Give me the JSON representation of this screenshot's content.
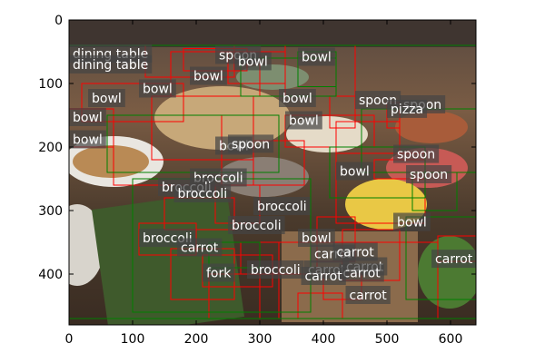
{
  "colors": {
    "predicted_box": "#ff0000",
    "ground_truth_box": "#008000",
    "label_background": "#444444",
    "label_text": "#ffffff"
  },
  "photo": {
    "subject": "buffet table with food trays and bowls",
    "width_units": 640,
    "height_units": 480
  },
  "chart_data": {
    "type": "image",
    "xlim": [
      0,
      640
    ],
    "ylim": [
      480,
      0
    ],
    "x_ticks": [
      0,
      100,
      200,
      300,
      400,
      500,
      600
    ],
    "y_ticks": [
      0,
      100,
      200,
      300,
      400
    ],
    "grid": false,
    "label_rows": [
      [
        "dining table",
        0,
        60
      ],
      [
        "dining table",
        0,
        77
      ],
      [
        "spoon",
        230,
        62
      ],
      [
        "bowl",
        260,
        72
      ],
      [
        "bowl",
        360,
        65
      ],
      [
        "bowl",
        190,
        95
      ],
      [
        "bowl",
        110,
        115
      ],
      [
        "bowl",
        30,
        130
      ],
      [
        "bowl",
        330,
        130
      ],
      [
        "spoon",
        450,
        133
      ],
      [
        "spoon",
        520,
        140
      ],
      [
        "pizza",
        500,
        147
      ],
      [
        "bowl",
        0,
        160
      ],
      [
        "bowl",
        340,
        165
      ],
      [
        "bowl",
        0,
        195
      ],
      [
        "bowl",
        230,
        205
      ],
      [
        "spoon",
        250,
        202
      ],
      [
        "spoon",
        510,
        218
      ],
      [
        "bowl",
        420,
        245
      ],
      [
        "spoon",
        530,
        250
      ],
      [
        "broccoli",
        190,
        255
      ],
      [
        "broccoli",
        140,
        270
      ],
      [
        "broccoli",
        165,
        280
      ],
      [
        "broccoli",
        290,
        300
      ],
      [
        "bowl",
        510,
        325
      ],
      [
        "broccoli",
        250,
        330
      ],
      [
        "bowl",
        360,
        350
      ],
      [
        "broccoli",
        110,
        350
      ],
      [
        "carrot",
        170,
        365
      ],
      [
        "carrot",
        380,
        375
      ],
      [
        "carrot",
        415,
        372
      ],
      [
        "carrot",
        570,
        383
      ],
      [
        "carrot",
        370,
        400
      ],
      [
        "carrot",
        430,
        395
      ],
      [
        "broccoli",
        280,
        400
      ],
      [
        "carrot",
        425,
        405
      ],
      [
        "carrot",
        365,
        410
      ],
      [
        "fork",
        210,
        405
      ],
      [
        "carrot",
        435,
        440
      ]
    ],
    "boxes_red": [
      [
        120,
        40,
        260,
        90
      ],
      [
        160,
        50,
        300,
        120
      ],
      [
        180,
        45,
        280,
        80
      ],
      [
        250,
        50,
        340,
        100
      ],
      [
        340,
        40,
        450,
        120
      ],
      [
        20,
        100,
        180,
        160
      ],
      [
        0,
        140,
        70,
        200
      ],
      [
        70,
        150,
        240,
        260
      ],
      [
        340,
        150,
        480,
        200
      ],
      [
        410,
        120,
        450,
        170
      ],
      [
        420,
        160,
        520,
        210
      ],
      [
        500,
        130,
        520,
        170
      ],
      [
        290,
        190,
        370,
        260
      ],
      [
        420,
        210,
        560,
        320
      ],
      [
        480,
        220,
        560,
        250
      ],
      [
        150,
        280,
        260,
        330
      ],
      [
        230,
        260,
        300,
        320
      ],
      [
        110,
        320,
        200,
        370
      ],
      [
        160,
        360,
        260,
        440
      ],
      [
        270,
        350,
        390,
        400
      ],
      [
        210,
        370,
        320,
        420
      ],
      [
        220,
        400,
        300,
        470
      ],
      [
        400,
        400,
        460,
        440
      ],
      [
        360,
        430,
        430,
        470
      ],
      [
        330,
        350,
        580,
        470
      ],
      [
        430,
        330,
        520,
        410
      ],
      [
        390,
        310,
        450,
        380
      ],
      [
        580,
        340,
        640,
        380
      ],
      [
        130,
        120,
        290,
        220
      ]
    ],
    "boxes_green": [
      [
        0,
        40,
        640,
        470
      ],
      [
        360,
        50,
        420,
        105
      ],
      [
        270,
        60,
        420,
        120
      ],
      [
        460,
        140,
        640,
        240
      ],
      [
        410,
        200,
        560,
        280
      ],
      [
        530,
        310,
        640,
        440
      ],
      [
        100,
        250,
        380,
        460
      ],
      [
        60,
        150,
        330,
        240
      ],
      [
        540,
        240,
        610,
        300
      ],
      [
        220,
        350,
        300,
        390
      ]
    ]
  }
}
